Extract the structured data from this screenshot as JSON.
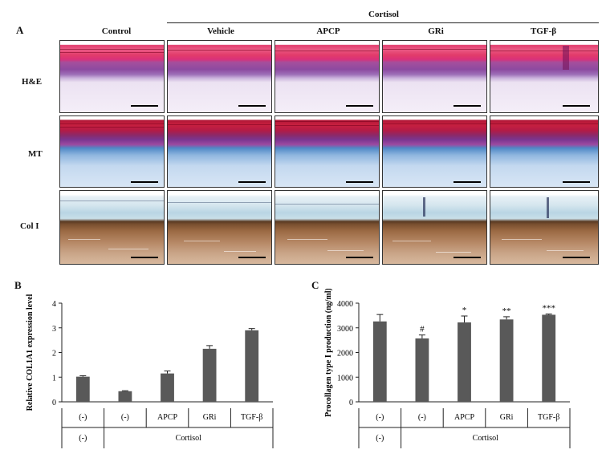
{
  "figure": {
    "panel_a": "A",
    "panel_b": "B",
    "panel_c": "C",
    "group_header": "Cortisol",
    "column_headers": [
      "Control",
      "Vehicle",
      "APCP",
      "GRi",
      "TGF-β"
    ],
    "row_labels": [
      "H&E",
      "MT",
      "Col I"
    ]
  },
  "chart_data": [
    {
      "type": "bar",
      "panel": "B",
      "categories": [
        "(-)",
        "(-)",
        "APCP",
        "GRi",
        "TGF-β"
      ],
      "group_row": [
        "(-)",
        "Cortisol"
      ],
      "values": [
        1.02,
        0.43,
        1.15,
        2.15,
        2.9
      ],
      "errors": [
        0.04,
        0.02,
        0.1,
        0.13,
        0.07
      ],
      "annotations": [
        "",
        "",
        "",
        "",
        ""
      ],
      "ylabel": "Relative COL1A1 expression level",
      "xlabel": "",
      "ylim": [
        0,
        4
      ],
      "yticks": [
        "0",
        "1",
        "2",
        "3",
        "4"
      ],
      "bar_color": "#595959"
    },
    {
      "type": "bar",
      "panel": "C",
      "categories": [
        "(-)",
        "(-)",
        "APCP",
        "GRi",
        "TGF-β"
      ],
      "group_row": [
        "(-)",
        "Cortisol"
      ],
      "values": [
        3260,
        2570,
        3220,
        3340,
        3530
      ],
      "errors": [
        280,
        140,
        260,
        110,
        30
      ],
      "annotations": [
        "",
        "#",
        "*",
        "**",
        "***"
      ],
      "ylabel": "Procollagen type I production (ng/ml)",
      "xlabel": "",
      "ylim": [
        0,
        4000
      ],
      "yticks": [
        "0",
        "1000",
        "2000",
        "3000",
        "4000"
      ],
      "bar_color": "#595959"
    }
  ]
}
